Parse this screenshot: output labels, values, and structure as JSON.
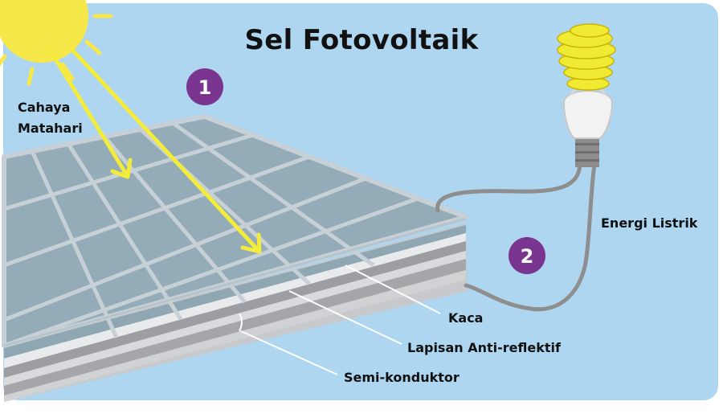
{
  "diagram": {
    "title": "Sel Fotovoltaik",
    "labels": {
      "sunlight_line1": "Cahaya",
      "sunlight_line2": "Matahari",
      "electric_energy": "Energi Listrik",
      "glass": "Kaca",
      "anti_reflective_layer": "Lapisan Anti-reflektif",
      "semiconductor": "Semi-konduktor"
    },
    "steps": [
      {
        "number": "1"
      },
      {
        "number": "2"
      }
    ],
    "colors": {
      "background": "#aed6f1",
      "sun": "#f7e84a",
      "sun_ray": "#f3ec3a",
      "panel_cell": "#94abb8",
      "panel_grid": "#c6d0d6",
      "badge": "#7a3590",
      "wire": "#8e8e8e"
    }
  }
}
